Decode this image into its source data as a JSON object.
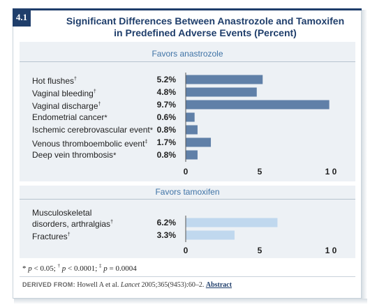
{
  "figure": {
    "number": "4.1",
    "title_line1": "Significant Differences Between Anastrozole and Tamoxifen",
    "title_line2": "in Predefined Adverse Events (Percent)"
  },
  "footnote": {
    "p1": "p",
    "p1_rest": " < 0.05; ",
    "sym2": "†",
    "p2": "p",
    "p2_rest": " < 0.0001; ",
    "sym3": "‡",
    "p3": "p",
    "p3_rest": " = 0.0004"
  },
  "source": {
    "lead": "DERIVED FROM:",
    "text_before": " Howell A et al. ",
    "journal": "Lancet",
    "text_after": " 2005;365(9453):60–2. ",
    "link": "Abstract"
  },
  "colors": {
    "anastrozole_bar": "#6080a8",
    "tamoxifen_bar": "#c0d8ee",
    "title": "#1f3e6b",
    "panel_bg": "#edf1f5"
  },
  "chart_data": [
    {
      "type": "bar",
      "orientation": "horizontal",
      "title": "Favors anastrozole",
      "categories": [
        "Hot flushes",
        "Vaginal bleeding",
        "Vaginal discharge",
        "Endometrial cancer",
        "Ischemic cerebrovascular event",
        "Venous thromboembolic event",
        "Deep vein thrombosis"
      ],
      "markers": [
        "†",
        "†",
        "†",
        "*",
        "*",
        "‡",
        "*"
      ],
      "values": [
        5.2,
        4.8,
        9.7,
        0.6,
        0.8,
        1.7,
        0.8
      ],
      "value_labels": [
        "5.2%",
        "4.8%",
        "9.7%",
        "0.6%",
        "0.8%",
        "1.7%",
        "0.8%"
      ],
      "xlim": [
        0,
        10
      ],
      "xticks": [
        "0",
        "5",
        "1 0"
      ],
      "color": "#6080a8"
    },
    {
      "type": "bar",
      "orientation": "horizontal",
      "title": "Favors tamoxifen",
      "categories": [
        "Musculoskeletal disorders, arthralgias",
        "Fractures"
      ],
      "category_lines": [
        [
          "Musculoskeletal",
          "disorders, arthralgias"
        ],
        [
          "Fractures"
        ]
      ],
      "markers": [
        "†",
        "†"
      ],
      "values": [
        6.2,
        3.3
      ],
      "value_labels": [
        "6.2%",
        "3.3%"
      ],
      "xlim": [
        0,
        10
      ],
      "xticks": [
        "0",
        "5",
        "1 0"
      ],
      "color": "#c0d8ee"
    }
  ]
}
